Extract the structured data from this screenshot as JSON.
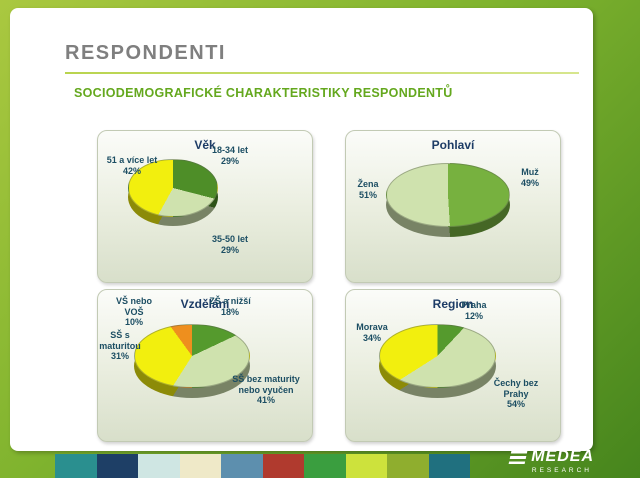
{
  "slide": {
    "title": "RESPONDENTI",
    "subtitle": "SOCIODEMOGRAFICKÉ CHARAKTERISTIKY RESPONDENTŮ"
  },
  "chart_data": [
    {
      "type": "pie",
      "title": "Věk",
      "labels": [
        "18-34 let",
        "35-50 let",
        "51 a více let"
      ],
      "values": [
        29,
        29,
        42
      ],
      "unit": "%",
      "colors": [
        "#4e8e28",
        "#cfe2ae",
        "#f2ef0e"
      ],
      "legend_position": "none",
      "style": "3d-exploded"
    },
    {
      "type": "pie",
      "title": "Pohlaví",
      "labels": [
        "Muž",
        "Žena"
      ],
      "values": [
        49,
        51
      ],
      "unit": "%",
      "colors": [
        "#77b13f",
        "#cfe2ae"
      ],
      "legend_position": "none",
      "style": "3d"
    },
    {
      "type": "pie",
      "title": "Vzdělání",
      "labels": [
        "ZŠ a nižší",
        "SŠ bez maturity nebo vyučen",
        "SŠ s maturitou",
        "VŠ nebo VOŠ"
      ],
      "values": [
        18,
        41,
        31,
        10
      ],
      "unit": "%",
      "colors": [
        "#559a2d",
        "#cfe2ae",
        "#f2ef0e",
        "#ee8f1e"
      ],
      "legend_position": "none",
      "style": "3d"
    },
    {
      "type": "pie",
      "title": "Region",
      "labels": [
        "Praha",
        "Čechy bez Prahy",
        "Morava"
      ],
      "values": [
        12,
        54,
        34
      ],
      "unit": "%",
      "colors": [
        "#559a2d",
        "#cfe2ae",
        "#f2ef0e"
      ],
      "legend_position": "none",
      "style": "3d-exploded"
    }
  ],
  "footer": {
    "brand": "MÉDEA",
    "brand_sub": "RESEARCH",
    "tile_colors": [
      "#2a8f8f",
      "#1e3f66",
      "#cfe6e3",
      "#efe9c8",
      "#5d8fae",
      "#b03a2e",
      "#3a9e3f",
      "#cde23c",
      "#8fae2e",
      "#20707f"
    ]
  }
}
